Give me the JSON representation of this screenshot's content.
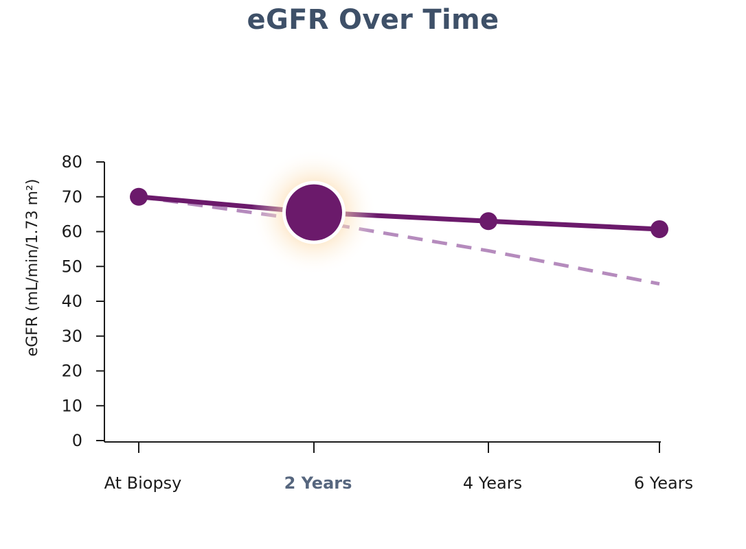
{
  "chart_data": {
    "type": "line",
    "title": "eGFR Over Time",
    "ylabel": "eGFR (mL/min/1.73 m²)",
    "xlabel": "",
    "ylim": [
      0,
      80
    ],
    "yticks": [
      0,
      10,
      20,
      30,
      40,
      50,
      60,
      70,
      80
    ],
    "categories": [
      "At Biopsy",
      "2 Years",
      "4 Years",
      "6 Years"
    ],
    "highlighted_category": "2 Years",
    "series": [
      {
        "style": "solid",
        "color": "#6b1a6b",
        "values": [
          70,
          65.5,
          63,
          60.7
        ]
      },
      {
        "style": "dashed",
        "color": "#b58bbd",
        "values": [
          70,
          63,
          54.5,
          45
        ]
      }
    ],
    "grid": false
  }
}
